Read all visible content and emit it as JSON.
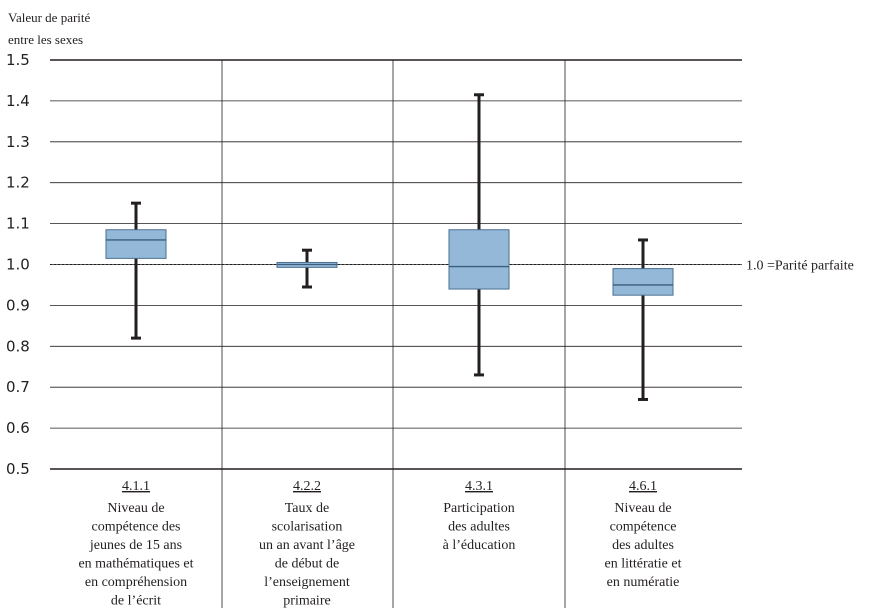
{
  "chart_data": {
    "type": "boxplot",
    "ylabel": [
      "Valeur de parité",
      "entre les sexes"
    ],
    "ylim": [
      0.5,
      1.5
    ],
    "yticks": [
      "1.5",
      "1.4",
      "1.3",
      "1.2",
      "1.1",
      "1.0",
      "0.9",
      "0.8",
      "0.7",
      "0.6",
      "0.5"
    ],
    "grid": true,
    "reference_line": {
      "value": 1.0,
      "label": "1.0 =Parité parfaite"
    },
    "box_color": "#93b8d8",
    "box_stroke": "#4a6f93",
    "categories": [
      {
        "code": "4.1.1",
        "label": [
          "Niveau de",
          "compétence des",
          "jeunes de 15 ans",
          "en mathématiques et",
          "en compréhension",
          "de l’écrit"
        ],
        "min": 0.82,
        "q1": 1.015,
        "median": 1.06,
        "q3": 1.085,
        "max": 1.15
      },
      {
        "code": "4.2.2",
        "label": [
          "Taux de",
          "scolarisation",
          "un an avant l’âge",
          "de début de",
          "l’enseignement",
          "primaire"
        ],
        "min": 0.945,
        "q1": 0.993,
        "median": 1.0,
        "q3": 1.005,
        "max": 1.035
      },
      {
        "code": "4.3.1",
        "label": [
          "Participation",
          "des adultes",
          "à l’éducation"
        ],
        "min": 0.73,
        "q1": 0.94,
        "median": 0.995,
        "q3": 1.085,
        "max": 1.415
      },
      {
        "code": "4.6.1",
        "label": [
          "Niveau de",
          "compétence",
          "des adultes",
          "en littératie et",
          "en numératie"
        ],
        "min": 0.67,
        "q1": 0.925,
        "median": 0.95,
        "q3": 0.99,
        "max": 1.06
      }
    ]
  }
}
